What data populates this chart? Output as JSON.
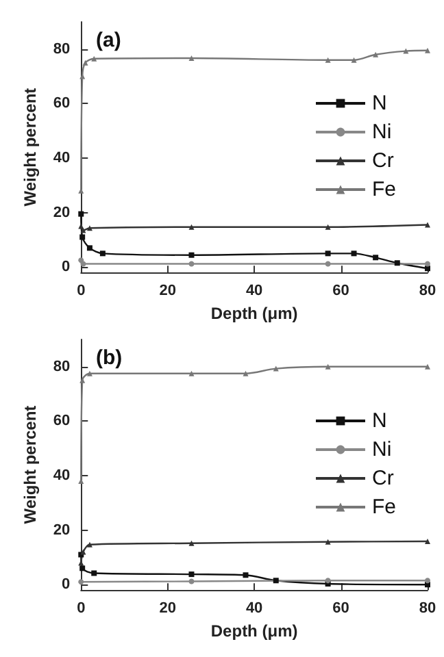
{
  "chart_data": [
    {
      "type": "line",
      "annotations": [
        "(a)"
      ],
      "xlabel": "Depth (μm)",
      "ylabel": "Weight percent",
      "xlim": [
        0,
        80
      ],
      "xticks": [
        0,
        20,
        40,
        60,
        80
      ],
      "ylim": [
        -2,
        90
      ],
      "yticks": [
        0,
        20,
        40,
        60,
        80
      ],
      "grid": false,
      "legend": "right",
      "series": [
        {
          "name": "N",
          "color": "#111111",
          "marker": "square",
          "x": [
            0,
            0.3,
            2,
            5,
            25.5,
            57,
            63,
            68,
            73,
            80
          ],
          "values": [
            19.5,
            11,
            7,
            5,
            4.4,
            5,
            5,
            3.5,
            1.5,
            -0.5
          ]
        },
        {
          "name": "Ni",
          "color": "#888888",
          "marker": "circle",
          "x": [
            0,
            0.5,
            25.5,
            57,
            80
          ],
          "values": [
            2.5,
            1.2,
            1.2,
            1.2,
            1.2
          ]
        },
        {
          "name": "Cr",
          "color": "#333333",
          "marker": "triangle",
          "x": [
            0,
            0.5,
            2,
            25.5,
            57,
            80
          ],
          "values": [
            15,
            13.5,
            14.3,
            14.7,
            14.7,
            15.5
          ]
        },
        {
          "name": "Fe",
          "color": "#777777",
          "marker": "triangle",
          "x": [
            0,
            0.3,
            1,
            3,
            25.5,
            57,
            63,
            68,
            75,
            80
          ],
          "values": [
            28,
            70,
            75,
            76.5,
            76.7,
            76,
            76,
            78,
            79.3,
            79.5
          ]
        }
      ]
    },
    {
      "type": "line",
      "annotations": [
        "(b)"
      ],
      "xlabel": "Depth (μm)",
      "ylabel": "Weight percent",
      "xlim": [
        0,
        80
      ],
      "xticks": [
        0,
        20,
        40,
        60,
        80
      ],
      "ylim": [
        -2,
        90
      ],
      "yticks": [
        0,
        20,
        40,
        60,
        80
      ],
      "grid": false,
      "legend": "right",
      "series": [
        {
          "name": "N",
          "color": "#111111",
          "marker": "square",
          "x": [
            0,
            0.3,
            3,
            25.5,
            38,
            45,
            57,
            80
          ],
          "values": [
            11,
            6,
            4.2,
            3.8,
            3.5,
            1.5,
            0.3,
            0
          ]
        },
        {
          "name": "Ni",
          "color": "#888888",
          "marker": "circle",
          "x": [
            0,
            25.5,
            57,
            80
          ],
          "values": [
            1,
            1.2,
            1.5,
            1.5
          ]
        },
        {
          "name": "Cr",
          "color": "#333333",
          "marker": "triangle",
          "x": [
            0,
            0.5,
            2,
            25.5,
            57,
            80
          ],
          "values": [
            8,
            12,
            14.7,
            15.2,
            15.7,
            15.9
          ]
        },
        {
          "name": "Fe",
          "color": "#777777",
          "marker": "triangle",
          "x": [
            0,
            0.3,
            2,
            25.5,
            38,
            45,
            57,
            80
          ],
          "values": [
            38,
            75,
            77.5,
            77.5,
            77.5,
            79.3,
            80,
            80
          ]
        }
      ]
    }
  ]
}
